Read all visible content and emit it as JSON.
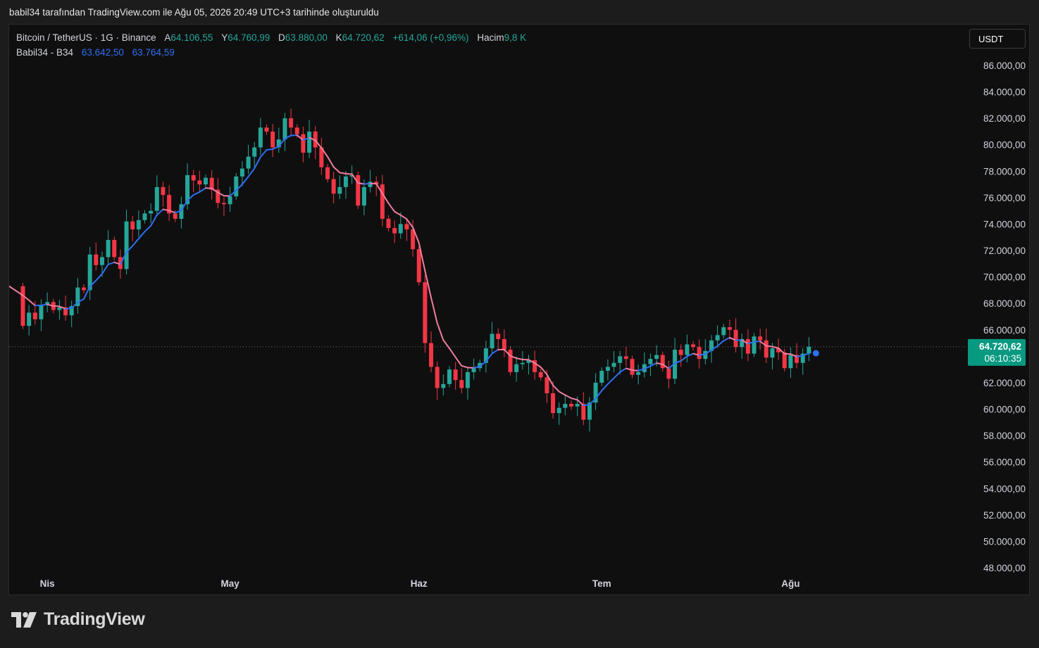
{
  "caption": "babil34 tarafından TradingView.com ile Ağu 05, 2026 20:49 UTC+3 tarihinde oluşturuldu",
  "symbol_line": "Bitcoin / TetherUS · 1G · Binance",
  "ohlc": {
    "a_label": "A",
    "a_value": "64.106,55",
    "y_label": "Y",
    "y_value": "64.760,99",
    "d_label": "D",
    "d_value": "63.880,00",
    "k_label": "K",
    "k_value": "64.720,62",
    "change": "+614,06 (+0,96%)",
    "volume_label": "Hacim",
    "volume_value": "9,8 K"
  },
  "indicator": {
    "name": "Babil34 - B34",
    "value1": "63.642,50",
    "value2": "63.764,59"
  },
  "currency_button": "USDT",
  "last_price_label": "64.720,62",
  "countdown": "06:10:35",
  "brand": "TradingView",
  "colors": {
    "up": "#26a69a",
    "down": "#f23645",
    "ma_up": "#2e6ff2",
    "ma_down": "#f07d9e",
    "bg": "#0f0f0f"
  },
  "chart_data": {
    "type": "candlestick",
    "ylim": [
      48000,
      86000
    ],
    "y_ticks": [
      "86.000,00",
      "84.000,00",
      "82.000,00",
      "80.000,00",
      "78.000,00",
      "76.000,00",
      "74.000,00",
      "72.000,00",
      "70.000,00",
      "68.000,00",
      "66.000,00",
      "62.000,00",
      "60.000,00",
      "58.000,00",
      "56.000,00",
      "54.000,00",
      "52.000,00",
      "50.000,00",
      "48.000,00"
    ],
    "y_tick_values": [
      86000,
      84000,
      82000,
      80000,
      78000,
      76000,
      74000,
      72000,
      70000,
      68000,
      66000,
      62000,
      60000,
      58000,
      56000,
      54000,
      52000,
      50000,
      48000
    ],
    "x_ticks": [
      {
        "label": "Nis",
        "index": 4
      },
      {
        "label": "May",
        "index": 34
      },
      {
        "label": "Haz",
        "index": 65
      },
      {
        "label": "Tem",
        "index": 95
      },
      {
        "label": "Ağu",
        "index": 126
      }
    ],
    "last_price": 64720.62,
    "closes": [
      66300,
      67300,
      66800,
      67900,
      68100,
      67500,
      67700,
      67100,
      67800,
      69200,
      69000,
      71700,
      70900,
      71500,
      72800,
      71500,
      70600,
      74200,
      73600,
      74300,
      74800,
      75000,
      76800,
      76200,
      74800,
      74400,
      75500,
      77700,
      77300,
      77000,
      77500,
      76600,
      75600,
      75500,
      76100,
      77600,
      78200,
      79100,
      79800,
      81300,
      81000,
      79800,
      80400,
      82000,
      81300,
      80800,
      79400,
      81000,
      79800,
      78300,
      77400,
      76300,
      76800,
      77600,
      77700,
      75400,
      76800,
      77200,
      77000,
      74400,
      73700,
      73300,
      74000,
      73600,
      72100,
      69600,
      65000,
      63200,
      61600,
      61900,
      63000,
      62200,
      61600,
      62800,
      63100,
      63500,
      64600,
      65700,
      65300,
      64500,
      62800,
      63400,
      63500,
      63700,
      62800,
      62400,
      61200,
      59700,
      60100,
      60400,
      60200,
      60400,
      59200,
      60500,
      62000,
      62900,
      63200,
      63500,
      64000,
      63800,
      62600,
      62800,
      63400,
      63800,
      64100,
      63100,
      62300,
      64500,
      64100,
      64900,
      64700,
      63800,
      64400,
      65200,
      65600,
      66200,
      66000,
      64700,
      65300,
      64200,
      65500,
      65200,
      63900,
      64600,
      64300,
      63100,
      64100,
      63500,
      64200,
      64720
    ]
  }
}
